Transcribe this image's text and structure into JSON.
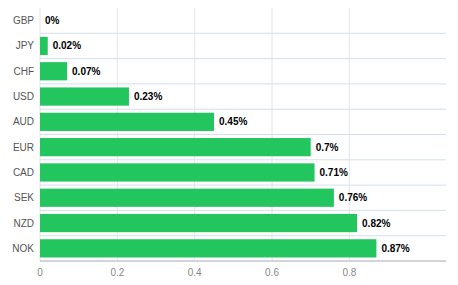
{
  "chart_data": {
    "type": "bar",
    "orientation": "horizontal",
    "categories": [
      "NOK",
      "NZD",
      "SEK",
      "CAD",
      "EUR",
      "AUD",
      "USD",
      "CHF",
      "JPY",
      "GBP"
    ],
    "values": [
      0.87,
      0.82,
      0.76,
      0.71,
      0.7,
      0.45,
      0.23,
      0.07,
      0.02,
      0.0
    ],
    "value_labels": [
      "0.87%",
      "0.82%",
      "0.76%",
      "0.71%",
      "0.7%",
      "0.45%",
      "0.23%",
      "0.07%",
      "0.02%",
      "0%"
    ],
    "color": "#22c55e",
    "xlim": [
      0,
      1.05
    ],
    "xticks": [
      0,
      0.2,
      0.4,
      0.6,
      0.8
    ],
    "grid": true,
    "data_labels": true
  }
}
